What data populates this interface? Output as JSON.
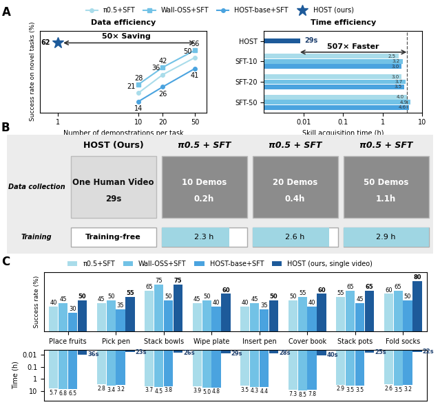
{
  "panel_labels": [
    "A",
    "B",
    "C"
  ],
  "chart_data": [
    {
      "type": "line",
      "title": "Data efficiency",
      "x_label": "Number of demonstrations per task",
      "y_label": "Success rate on novel tasks (%)",
      "log": "x",
      "xlim": [
        0.6,
        70
      ],
      "xticks": [
        1,
        10,
        20,
        50
      ],
      "ylim": [
        5,
        72
      ],
      "yticks": [],
      "tick_labels": "x",
      "data_labels": true,
      "legend": "upper center",
      "annotation": "50× Saving",
      "series": [
        {
          "name": "π0.5+SFT",
          "color": "#a9dcea",
          "marker": "o",
          "line_style": "solid",
          "x": [
            10,
            20,
            50
          ],
          "values": [
            21,
            36,
            50
          ]
        },
        {
          "name": "Wall-OSS+SFT",
          "color": "#72c2e6",
          "marker": "s",
          "line_style": "solid",
          "x": [
            10,
            20,
            50
          ],
          "values": [
            28,
            42,
            56
          ]
        },
        {
          "name": "HOST-base+SFT",
          "color": "#4aa3df",
          "marker": "o",
          "line_style": "solid",
          "x": [
            10,
            20,
            50
          ],
          "values": [
            14,
            26,
            41
          ]
        },
        {
          "name": "HOST (ours)",
          "color": "#1d5a9a",
          "marker": "*",
          "line_style": "none",
          "x": [
            1
          ],
          "values": [
            62
          ]
        }
      ]
    },
    {
      "type": "bar",
      "orientation": "horizontal",
      "title": "Time efficiency",
      "x_label": "Skill acquisition time (h)",
      "log": "x",
      "xlim": [
        0.001,
        10
      ],
      "xticks": [
        0.01,
        0.1,
        1,
        10
      ],
      "categories": [
        "HOST",
        "SFT-10",
        "SFT-20",
        "SFT-50"
      ],
      "data_labels": true,
      "annotation": "507× Faster",
      "series": [
        {
          "name": "π0.5+SFT",
          "color": "#a9dcea",
          "values": [
            null,
            2.5,
            3.0,
            4.0
          ]
        },
        {
          "name": "Wall-OSS+SFT",
          "color": "#72c2e6",
          "values": [
            null,
            3.2,
            3.7,
            4.9
          ]
        },
        {
          "name": "HOST-base+SFT",
          "color": "#4aa3df",
          "values": [
            null,
            3.0,
            3.5,
            4.6
          ]
        },
        {
          "name": "HOST (ours)",
          "color": "#1d5a9a",
          "values": [
            0.0081,
            null,
            null,
            null
          ],
          "value_labels": [
            "29s",
            null,
            null,
            null
          ]
        }
      ]
    },
    {
      "type": "bar",
      "y_label": "Success rate (%)",
      "categories": [
        "Place fruits",
        "Pick pen",
        "Stack bowls",
        "Wipe plate",
        "Insert pen",
        "Cover book",
        "Stack pots",
        "Fold socks"
      ],
      "ylim": [
        0,
        95
      ],
      "yticks": [],
      "tick_labels": "x",
      "data_labels": true,
      "legend": "upper center",
      "series": [
        {
          "name": "π0.5+SFT",
          "color": "#a9dcea",
          "values": [
            40,
            45,
            65,
            45,
            40,
            50,
            55,
            60
          ]
        },
        {
          "name": "Wall-OSS+SFT",
          "color": "#72c2e6",
          "values": [
            45,
            50,
            75,
            50,
            45,
            55,
            65,
            65
          ]
        },
        {
          "name": "HOST-base+SFT",
          "color": "#4aa3df",
          "values": [
            30,
            35,
            50,
            40,
            35,
            40,
            45,
            50
          ]
        },
        {
          "name": "HOST (ours, single video)",
          "color": "#1d5a9a",
          "values": [
            50,
            55,
            75,
            60,
            50,
            60,
            65,
            80
          ]
        }
      ]
    },
    {
      "type": "bar",
      "y_label": "Time (h)",
      "categories": [
        "Place fruits",
        "Pick pen",
        "Stack bowls",
        "Wipe plate",
        "Insert pen",
        "Cover book",
        "Stack pots",
        "Fold socks"
      ],
      "log": "y",
      "ylim": [
        60,
        0.004
      ],
      "yticks": [
        0.01,
        0.1,
        1,
        10
      ],
      "tick_labels": "y",
      "data_labels": true,
      "series": [
        {
          "name": "π0.5+SFT",
          "color": "#a9dcea",
          "values": [
            5.7,
            2.8,
            3.7,
            3.9,
            3.5,
            7.3,
            2.9,
            2.6
          ]
        },
        {
          "name": "Wall-OSS+SFT",
          "color": "#72c2e6",
          "values": [
            6.8,
            3.4,
            4.5,
            5.0,
            4.3,
            8.5,
            3.5,
            3.5
          ]
        },
        {
          "name": "HOST-base+SFT",
          "color": "#4aa3df",
          "values": [
            6.5,
            3.2,
            3.8,
            4.8,
            4.4,
            7.8,
            3.5,
            3.2
          ]
        },
        {
          "name": "HOST (ours, single video)",
          "color": "#1d5a9a",
          "values": [
            0.01,
            0.0064,
            0.0072,
            0.0081,
            0.0078,
            0.0111,
            0.0069,
            0.0061
          ],
          "value_labels": [
            "36s",
            "23s",
            "26s",
            "29s",
            "28s",
            "40s",
            "25s",
            "22s"
          ]
        }
      ]
    }
  ],
  "diagram": {
    "row_labels": [
      "Data collection",
      "Training"
    ],
    "columns": [
      {
        "title": "HOST (Ours)",
        "collection": [
          "One Human Video",
          "29s"
        ],
        "training": {
          "label": "Training-free"
        }
      },
      {
        "title": "π0.5 + SFT",
        "collection": [
          "10 Demos",
          "0.2h"
        ],
        "training": {
          "value": 2.3,
          "label": "2.3 h"
        }
      },
      {
        "title": "π0.5 + SFT",
        "collection": [
          "20 Demos",
          "0.4h"
        ],
        "training": {
          "value": 2.6,
          "label": "2.6 h"
        }
      },
      {
        "title": "π0.5 + SFT",
        "collection": [
          "50 Demos",
          "1.1h"
        ],
        "training": {
          "value": 2.9,
          "label": "2.9 h"
        }
      }
    ]
  }
}
